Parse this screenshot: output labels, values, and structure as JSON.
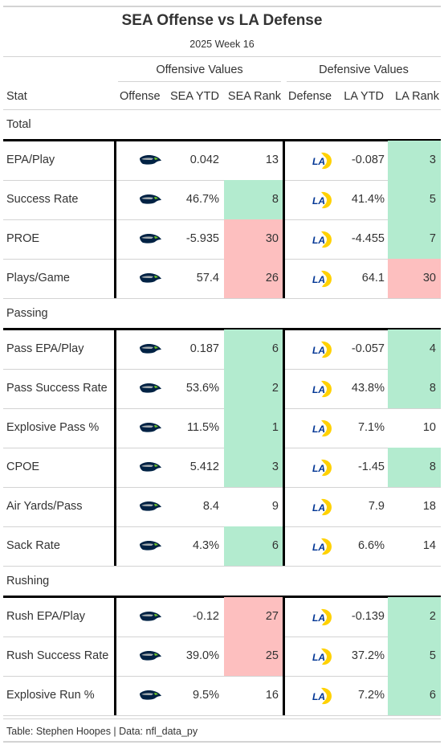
{
  "header": {
    "title": "SEA Offense vs LA Defense",
    "subtitle": "2025 Week 16"
  },
  "spanners": {
    "offensive": "Offensive Values",
    "defensive": "Defensive Values"
  },
  "columns": {
    "stat": "Stat",
    "offense": "Offense",
    "sea_ytd": "SEA YTD",
    "sea_rank": "SEA Rank",
    "defense": "Defense",
    "la_ytd": "LA YTD",
    "la_rank": "LA Rank"
  },
  "colors": {
    "good": "#b3ebcf",
    "bad": "#fdbfbf",
    "seahawks_navy": "#002244",
    "seahawks_green": "#69BE28",
    "seahawks_gray": "#A5ACAF",
    "rams_blue": "#003594",
    "rams_gold": "#FFD100"
  },
  "icons": {
    "offense_logo": "seahawks-logo-icon",
    "defense_logo": "rams-logo-icon"
  },
  "groups": [
    {
      "label": "Total",
      "rows": [
        {
          "stat": "EPA/Play",
          "sea_ytd": "0.042",
          "sea_rank": "13",
          "sea_rank_status": "none",
          "la_ytd": "-0.087",
          "la_rank": "3",
          "la_rank_status": "good"
        },
        {
          "stat": "Success Rate",
          "sea_ytd": "46.7%",
          "sea_rank": "8",
          "sea_rank_status": "good",
          "la_ytd": "41.4%",
          "la_rank": "5",
          "la_rank_status": "good"
        },
        {
          "stat": "PROE",
          "sea_ytd": "-5.935",
          "sea_rank": "30",
          "sea_rank_status": "bad",
          "la_ytd": "-4.455",
          "la_rank": "7",
          "la_rank_status": "good"
        },
        {
          "stat": "Plays/Game",
          "sea_ytd": "57.4",
          "sea_rank": "26",
          "sea_rank_status": "bad",
          "la_ytd": "64.1",
          "la_rank": "30",
          "la_rank_status": "bad"
        }
      ]
    },
    {
      "label": "Passing",
      "rows": [
        {
          "stat": "Pass EPA/Play",
          "sea_ytd": "0.187",
          "sea_rank": "6",
          "sea_rank_status": "good",
          "la_ytd": "-0.057",
          "la_rank": "4",
          "la_rank_status": "good"
        },
        {
          "stat": "Pass Success Rate",
          "sea_ytd": "53.6%",
          "sea_rank": "2",
          "sea_rank_status": "good",
          "la_ytd": "43.8%",
          "la_rank": "8",
          "la_rank_status": "good"
        },
        {
          "stat": "Explosive Pass %",
          "sea_ytd": "11.5%",
          "sea_rank": "1",
          "sea_rank_status": "good",
          "la_ytd": "7.1%",
          "la_rank": "10",
          "la_rank_status": "none"
        },
        {
          "stat": "CPOE",
          "sea_ytd": "5.412",
          "sea_rank": "3",
          "sea_rank_status": "good",
          "la_ytd": "-1.45",
          "la_rank": "8",
          "la_rank_status": "good"
        },
        {
          "stat": "Air Yards/Pass",
          "sea_ytd": "8.4",
          "sea_rank": "9",
          "sea_rank_status": "none",
          "la_ytd": "7.9",
          "la_rank": "18",
          "la_rank_status": "none"
        },
        {
          "stat": "Sack Rate",
          "sea_ytd": "4.3%",
          "sea_rank": "6",
          "sea_rank_status": "good",
          "la_ytd": "6.6%",
          "la_rank": "14",
          "la_rank_status": "none"
        }
      ]
    },
    {
      "label": "Rushing",
      "rows": [
        {
          "stat": "Rush EPA/Play",
          "sea_ytd": "-0.12",
          "sea_rank": "27",
          "sea_rank_status": "bad",
          "la_ytd": "-0.139",
          "la_rank": "2",
          "la_rank_status": "good"
        },
        {
          "stat": "Rush Success Rate",
          "sea_ytd": "39.0%",
          "sea_rank": "25",
          "sea_rank_status": "bad",
          "la_ytd": "37.2%",
          "la_rank": "5",
          "la_rank_status": "good"
        },
        {
          "stat": "Explosive Run %",
          "sea_ytd": "9.5%",
          "sea_rank": "16",
          "sea_rank_status": "none",
          "la_ytd": "7.2%",
          "la_rank": "6",
          "la_rank_status": "good"
        }
      ]
    }
  ],
  "footer": "Table: Stephen Hoopes | Data: nfl_data_py"
}
